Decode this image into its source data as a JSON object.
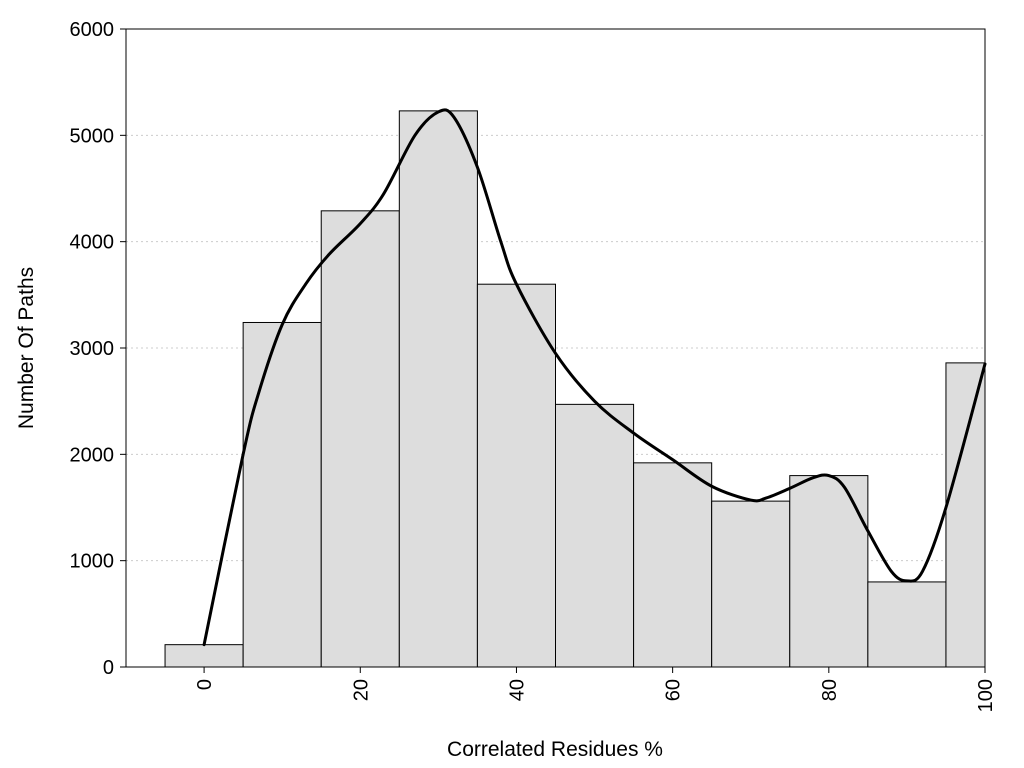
{
  "chart_data": {
    "type": "bar",
    "title": "",
    "xlabel": "Correlated Residues %",
    "ylabel": "Number Of Paths",
    "xlim": [
      -10,
      100
    ],
    "ylim": [
      0,
      6000
    ],
    "grid": "horizontal dotted",
    "bins": [
      {
        "x": 0,
        "value": 210
      },
      {
        "x": 10,
        "value": 3240
      },
      {
        "x": 20,
        "value": 4290
      },
      {
        "x": 30,
        "value": 5230
      },
      {
        "x": 40,
        "value": 3600
      },
      {
        "x": 50,
        "value": 2470
      },
      {
        "x": 60,
        "value": 1920
      },
      {
        "x": 70,
        "value": 1560
      },
      {
        "x": 80,
        "value": 1800
      },
      {
        "x": 90,
        "value": 800
      },
      {
        "x": 100,
        "value": 2860
      }
    ],
    "curve": {
      "x": [
        0,
        5,
        7,
        10,
        13,
        16,
        20,
        23,
        27,
        30,
        32,
        35,
        38,
        40,
        45,
        50,
        55,
        60,
        65,
        70,
        72,
        75,
        78,
        80,
        82,
        85,
        88,
        90,
        92,
        95,
        100
      ],
      "y": [
        210,
        2000,
        2580,
        3220,
        3600,
        3880,
        4170,
        4450,
        5000,
        5220,
        5170,
        4700,
        4000,
        3600,
        2950,
        2500,
        2200,
        1950,
        1700,
        1570,
        1590,
        1680,
        1780,
        1800,
        1690,
        1280,
        900,
        810,
        900,
        1500,
        2850
      ]
    },
    "x_ticks": [
      "0",
      "20",
      "40",
      "60",
      "80",
      "100"
    ],
    "y_ticks": [
      "0",
      "1000",
      "2000",
      "3000",
      "4000",
      "5000",
      "6000"
    ],
    "colors": {
      "bar_fill": "#dddddd",
      "bar_stroke": "#000000",
      "curve": "#000000",
      "grid": "#cccccc"
    }
  }
}
